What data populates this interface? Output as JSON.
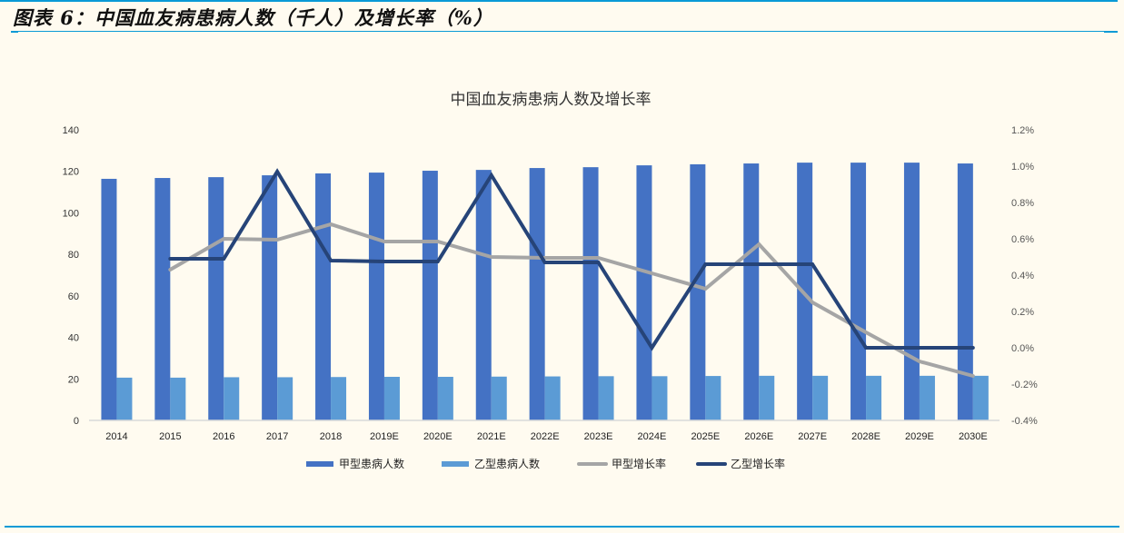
{
  "figure": {
    "title": "图表 6：中国血友病患病人数（千人）及增长率（%）"
  },
  "colors": {
    "rule": "#0a9ad6",
    "background": "#fffbf0",
    "series_a_bar": "#4472c4",
    "series_b_bar": "#5b9bd5",
    "series_a_line": "#a5a5a5",
    "series_b_line": "#264478"
  },
  "chart_data": {
    "type": "bar",
    "title": "中国血友病患病人数及增长率",
    "xlabel": "",
    "ylabel": "",
    "ylim": [
      0,
      140
    ],
    "y_ticks": [
      "0",
      "20",
      "40",
      "60",
      "80",
      "100",
      "120",
      "140"
    ],
    "y2lim": [
      -0.4,
      1.2
    ],
    "y2_ticks": [
      "-0.4%",
      "-0.2%",
      "0.0%",
      "0.2%",
      "0.4%",
      "0.6%",
      "0.8%",
      "1.0%",
      "1.2%"
    ],
    "grid": false,
    "legend_position": "bottom",
    "categories": [
      "2014",
      "2015",
      "2016",
      "2017",
      "2018",
      "2019E",
      "2020E",
      "2021E",
      "2022E",
      "2023E",
      "2024E",
      "2025E",
      "2026E",
      "2027E",
      "2028E",
      "2029E",
      "2030E"
    ],
    "series": [
      {
        "name": "甲型患病人数",
        "type": "bar",
        "axis": "left",
        "values": [
          116.4,
          116.8,
          117.2,
          118.1,
          119.0,
          119.4,
          120.3,
          120.7,
          121.6,
          122.0,
          122.9,
          123.4,
          123.8,
          124.2,
          124.2,
          124.2,
          123.8
        ]
      },
      {
        "name": "乙型患病人数",
        "type": "bar",
        "axis": "left",
        "values": [
          20.6,
          20.6,
          20.8,
          20.8,
          20.9,
          21.0,
          21.0,
          21.1,
          21.2,
          21.3,
          21.3,
          21.4,
          21.5,
          21.5,
          21.5,
          21.5,
          21.5
        ]
      },
      {
        "name": "甲型增长率",
        "type": "line",
        "axis": "right",
        "unit": "%",
        "values": [
          null,
          0.43,
          0.6,
          0.595,
          0.68,
          0.585,
          0.585,
          0.5,
          0.495,
          0.495,
          0.41,
          0.325,
          0.57,
          0.25,
          0.085,
          -0.075,
          -0.155
        ]
      },
      {
        "name": "乙型增长率",
        "type": "line",
        "axis": "right",
        "unit": "%",
        "values": [
          null,
          0.49,
          0.49,
          0.97,
          0.48,
          0.475,
          0.475,
          0.95,
          0.47,
          0.47,
          0.0,
          0.46,
          0.46,
          0.46,
          0.0,
          0.0,
          0.0
        ]
      }
    ]
  }
}
